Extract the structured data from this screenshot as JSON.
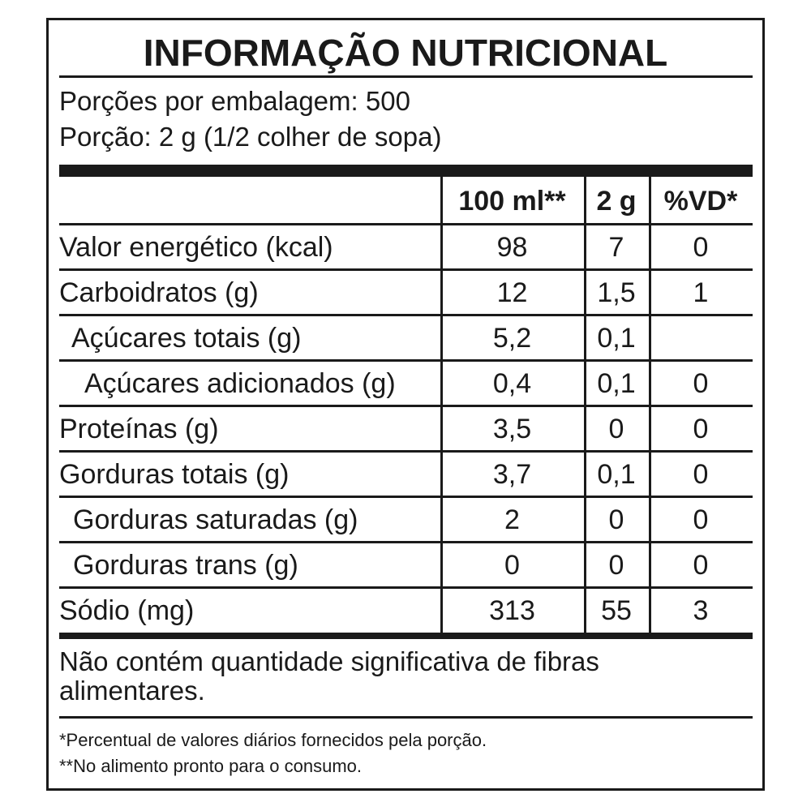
{
  "header": {
    "title": "INFORMAÇÃO NUTRICIONAL",
    "servings": "Porções por embalagem: 500",
    "portion": "Porção: 2 g (1/2 colher de sopa)"
  },
  "table": {
    "columns": [
      "100 ml**",
      "2 g",
      "%VD*"
    ],
    "rows": [
      [
        "Valor energético (kcal)",
        "98",
        "7",
        "0"
      ],
      [
        "Carboidratos (g)",
        "12",
        "1,5",
        "1"
      ],
      [
        "Açúcares totais (g)",
        "5,2",
        "0,1",
        null
      ],
      [
        "Açúcares adicionados (g)",
        "0,4",
        "0,1",
        "0"
      ],
      [
        "Proteínas (g)",
        "3,5",
        "0",
        "0"
      ],
      [
        "Gorduras totais (g)",
        "3,7",
        "0,1",
        "0"
      ],
      [
        "Gorduras saturadas (g)",
        "2",
        "0",
        "0"
      ],
      [
        "Gorduras trans (g)",
        "0",
        "0",
        "0"
      ],
      [
        "Sódio (mg)",
        "313",
        "55",
        "3"
      ]
    ]
  },
  "footer": {
    "note": "Não contém quantidade significativa de fibras alimentares.",
    "footnotes": [
      "*Percentual de valores diários fornecidos pela porção.",
      "**No alimento pronto para o consumo."
    ]
  }
}
